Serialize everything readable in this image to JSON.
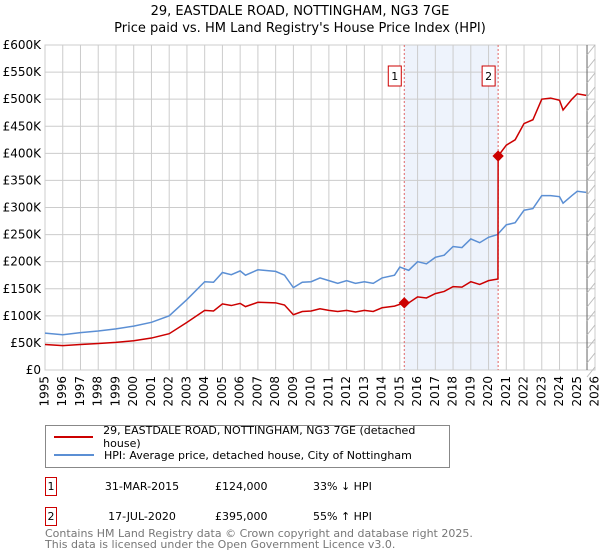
{
  "title_line1": "29, EASTDALE ROAD, NOTTINGHAM, NG3 7GE",
  "title_line2": "Price paid vs. HM Land Registry's House Price Index (HPI)",
  "chart_data": {
    "type": "line",
    "title": "29, EASTDALE ROAD, NOTTINGHAM, NG3 7GE — Price paid vs. HM Land Registry's House Price Index (HPI)",
    "xlim": [
      1995,
      2026
    ],
    "ylim": [
      0,
      600000
    ],
    "yticks": [
      0,
      50000,
      100000,
      150000,
      200000,
      250000,
      300000,
      350000,
      400000,
      450000,
      500000,
      550000,
      600000
    ],
    "ytick_labels": [
      "£0",
      "£50K",
      "£100K",
      "£150K",
      "£200K",
      "£250K",
      "£300K",
      "£350K",
      "£400K",
      "£450K",
      "£500K",
      "£550K",
      "£600K"
    ],
    "xticks": [
      1995,
      1996,
      1997,
      1998,
      1999,
      2000,
      2001,
      2002,
      2003,
      2004,
      2005,
      2006,
      2007,
      2008,
      2009,
      2010,
      2011,
      2012,
      2013,
      2014,
      2015,
      2016,
      2017,
      2018,
      2019,
      2020,
      2021,
      2022,
      2023,
      2024,
      2025,
      2026
    ],
    "grid": true,
    "shaded_range": [
      2015.25,
      2020.54
    ],
    "series": [
      {
        "name": "29, EASTDALE ROAD, NOTTINGHAM, NG3 7GE (detached house)",
        "color": "#cc0000",
        "x": [
          1995,
          1996,
          1997,
          1998,
          1999,
          2000,
          2001,
          2002,
          2003,
          2004,
          2004.5,
          2005,
          2005.5,
          2006,
          2006.3,
          2007,
          2008,
          2008.5,
          2009,
          2009.5,
          2010,
          2010.5,
          2011,
          2011.5,
          2012,
          2012.5,
          2013,
          2013.5,
          2014,
          2014.7,
          2015.25,
          2015.5,
          2016,
          2016.5,
          2017,
          2017.5,
          2018,
          2018.5,
          2019,
          2019.5,
          2020,
          2020.53,
          2020.54,
          2021,
          2021.5,
          2022,
          2022.5,
          2023,
          2023.5,
          2024,
          2024.2,
          2024.7,
          2025,
          2025.5
        ],
        "y": [
          47000,
          45000,
          47000,
          49000,
          51000,
          54000,
          59000,
          67000,
          88000,
          110000,
          109000,
          122000,
          119000,
          123000,
          117000,
          125000,
          124000,
          120000,
          102000,
          108000,
          109000,
          113000,
          110000,
          108000,
          110000,
          107000,
          110000,
          108000,
          115000,
          118000,
          124000,
          124000,
          135000,
          133000,
          141000,
          145000,
          154000,
          153000,
          163000,
          158000,
          165000,
          168000,
          395000,
          415000,
          425000,
          455000,
          462000,
          500000,
          502000,
          498000,
          480000,
          500000,
          510000,
          507000
        ]
      },
      {
        "name": "HPI: Average price, detached house, City of Nottingham",
        "color": "#5b8fd4",
        "x": [
          1995,
          1996,
          1997,
          1998,
          1999,
          2000,
          2001,
          2002,
          2003,
          2004,
          2004.5,
          2005,
          2005.5,
          2006,
          2006.3,
          2007,
          2008,
          2008.5,
          2009,
          2009.5,
          2010,
          2010.5,
          2011,
          2011.5,
          2012,
          2012.5,
          2013,
          2013.5,
          2014,
          2014.7,
          2015,
          2015.5,
          2016,
          2016.5,
          2017,
          2017.5,
          2018,
          2018.5,
          2019,
          2019.5,
          2020,
          2020.5,
          2021,
          2021.5,
          2022,
          2022.5,
          2023,
          2023.5,
          2024,
          2024.2,
          2024.7,
          2025,
          2025.5
        ],
        "y": [
          68000,
          65000,
          69000,
          72000,
          76000,
          81000,
          88000,
          100000,
          130000,
          163000,
          162000,
          180000,
          176000,
          183000,
          175000,
          185000,
          182000,
          175000,
          152000,
          162000,
          163000,
          170000,
          165000,
          160000,
          165000,
          160000,
          163000,
          160000,
          170000,
          175000,
          190000,
          184000,
          200000,
          196000,
          208000,
          212000,
          228000,
          226000,
          242000,
          235000,
          245000,
          250000,
          268000,
          272000,
          295000,
          298000,
          322000,
          322000,
          320000,
          308000,
          322000,
          330000,
          328000
        ]
      }
    ],
    "sales": [
      {
        "label": "1",
        "x": 2015.25,
        "y": 124000,
        "date": "31-MAR-2015",
        "price": "£124,000",
        "hpi": "33% ↓ HPI"
      },
      {
        "label": "2",
        "x": 2020.54,
        "y": 395000,
        "date": "17-JUL-2020",
        "price": "£395,000",
        "hpi": "55% ↑ HPI"
      }
    ]
  },
  "footer_line1": "Contains HM Land Registry data © Crown copyright and database right 2025.",
  "footer_line2": "This data is licensed under the Open Government Licence v3.0."
}
